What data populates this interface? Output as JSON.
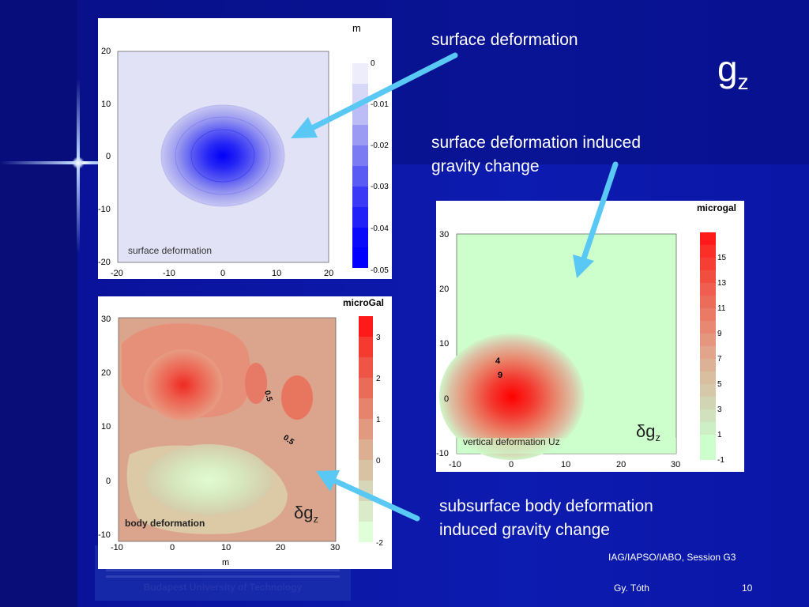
{
  "slide": {
    "title": "g",
    "title_sub": "z",
    "footer_event": "IAG/IAPSO/IABO, Session G3",
    "footer_author": "Gy. Tóth",
    "page_number": "10",
    "logo_text": "Budapest University of Technology"
  },
  "callouts": {
    "surface": "surface deformation",
    "induced_line1": "surface deformation induced",
    "induced_line2": "gravity change",
    "subsurface_line1": "subsurface body deformation",
    "subsurface_line2": "induced gravity change"
  },
  "colors": {
    "arrow": "#59c8f5",
    "blue_scale_max": "#0000ff",
    "red_scale_max": "#ff0000",
    "background_green": "#ccffcc"
  },
  "chart_data": [
    {
      "type": "heatmap",
      "name_label": "surface deformation",
      "unit": "m",
      "xlim": [
        -20,
        20
      ],
      "ylim": [
        -20,
        20
      ],
      "x_ticks": [
        "-20",
        "-10",
        "0",
        "10",
        "20"
      ],
      "y_ticks": [
        "20",
        "10",
        "0",
        "-10",
        "-20"
      ],
      "colorbar_ticks": [
        "0",
        "-0.01",
        "-0.02",
        "-0.03",
        "-0.04",
        "-0.05"
      ],
      "center": [
        0,
        0
      ],
      "min_value": -0.05
    },
    {
      "type": "heatmap",
      "name_label": "body deformation",
      "unit": "microGal",
      "xlabel": "m",
      "xlim": [
        -10,
        30
      ],
      "ylim": [
        -10,
        30
      ],
      "x_ticks": [
        "-10",
        "0",
        "10",
        "20",
        "30"
      ],
      "y_ticks": [
        "30",
        "20",
        "10",
        "0",
        "-10"
      ],
      "colorbar_ticks": [
        "3",
        "2",
        "1",
        "0",
        "-2"
      ],
      "contour_labels": [
        "0.5",
        "0.5"
      ],
      "symbol": "δg",
      "symbol_sub": "z"
    },
    {
      "type": "heatmap",
      "name_label": "vertical deformation Uz",
      "unit": "microgal",
      "xlim": [
        -10,
        30
      ],
      "ylim": [
        -10,
        30
      ],
      "x_ticks": [
        "-10",
        "0",
        "10",
        "20",
        "30"
      ],
      "y_ticks": [
        "30",
        "20",
        "10",
        "0",
        "-10"
      ],
      "colorbar_ticks": [
        "15",
        "13",
        "11",
        "9",
        "7",
        "5",
        "3",
        "1",
        "-1"
      ],
      "contour_labels": [
        "4",
        "9"
      ],
      "symbol": "δg",
      "symbol_sub": "z",
      "center": [
        0,
        0
      ]
    }
  ]
}
